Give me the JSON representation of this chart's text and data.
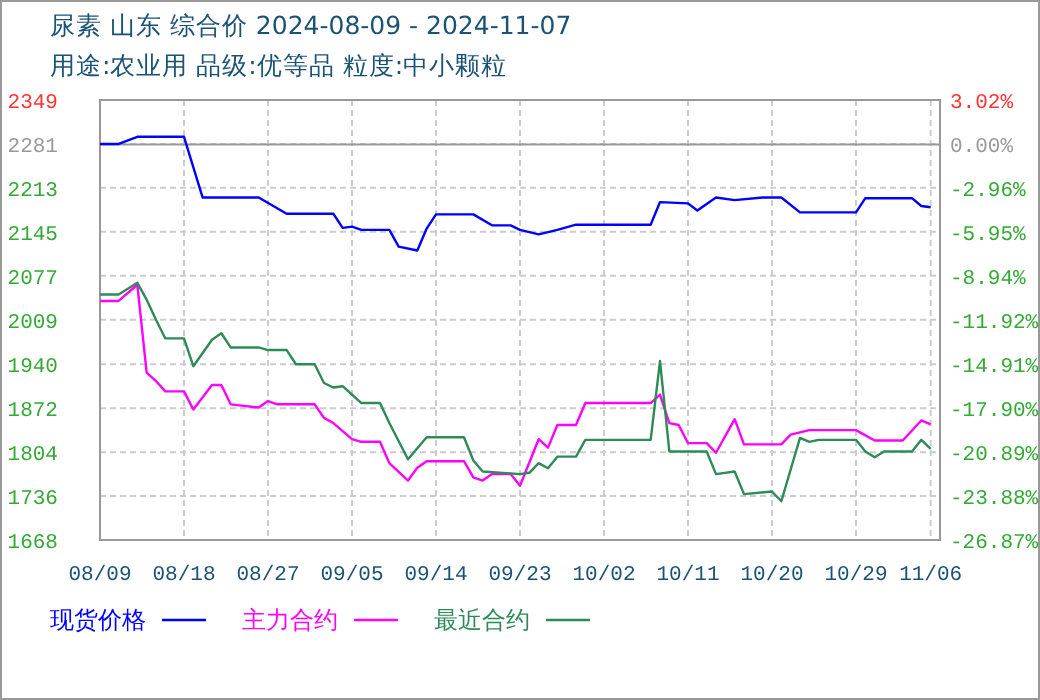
{
  "chart_data": {
    "type": "line",
    "title": "尿素 山东 综合价 2024-08-09 - 2024-11-07",
    "subtitle": "用途:农业用 品级:优等品 粒度:中小颗粒",
    "xlim": [
      "2024-08-09",
      "2024-11-07"
    ],
    "xticks": [
      {
        "value": "2024-08-09",
        "label": "08/09"
      },
      {
        "value": "2024-08-18",
        "label": "08/18"
      },
      {
        "value": "2024-08-27",
        "label": "08/27"
      },
      {
        "value": "2024-09-05",
        "label": "09/05"
      },
      {
        "value": "2024-09-14",
        "label": "09/14"
      },
      {
        "value": "2024-09-23",
        "label": "09/23"
      },
      {
        "value": "2024-10-02",
        "label": "10/02"
      },
      {
        "value": "2024-10-11",
        "label": "10/11"
      },
      {
        "value": "2024-10-20",
        "label": "10/20"
      },
      {
        "value": "2024-10-29",
        "label": "10/29"
      },
      {
        "value": "2024-11-06",
        "label": "11/06"
      }
    ],
    "ylim": [
      1668,
      2349
    ],
    "yticks": [
      1668,
      1736,
      1804,
      1872,
      1940,
      2009,
      2077,
      2145,
      2213,
      2281,
      2349
    ],
    "y2lim": [
      -26.87,
      3.02
    ],
    "y2ticks": [
      {
        "value": -26.87,
        "label": "-26.87%"
      },
      {
        "value": -23.88,
        "label": "-23.88%"
      },
      {
        "value": -20.89,
        "label": "-20.89%"
      },
      {
        "value": -17.9,
        "label": "-17.90%"
      },
      {
        "value": -14.91,
        "label": "-14.91%"
      },
      {
        "value": -11.92,
        "label": "-11.92%"
      },
      {
        "value": -8.94,
        "label": "-8.94%"
      },
      {
        "value": -5.95,
        "label": "-5.95%"
      },
      {
        "value": -2.96,
        "label": "-2.96%"
      },
      {
        "value": 0,
        "label": "0.00%"
      },
      {
        "value": 3.02,
        "label": "3.02%"
      }
    ],
    "grid": true,
    "legend": "bottom",
    "marker": "none",
    "line_style": "solid",
    "ref_lines": [
      {
        "axis": "y2",
        "value": 0,
        "color": "#999999"
      }
    ],
    "series": [
      {
        "name": "现货价格",
        "color": "#0000ff",
        "x": [
          "2024-08-09",
          "2024-08-11",
          "2024-08-13",
          "2024-08-18",
          "2024-08-20",
          "2024-08-26",
          "2024-08-29",
          "2024-09-03",
          "2024-09-04",
          "2024-09-05",
          "2024-09-06",
          "2024-09-09",
          "2024-09-10",
          "2024-09-12",
          "2024-09-13",
          "2024-09-14",
          "2024-09-18",
          "2024-09-20",
          "2024-09-22",
          "2024-09-23",
          "2024-09-25",
          "2024-09-27",
          "2024-09-29",
          "2024-10-07",
          "2024-10-08",
          "2024-10-11",
          "2024-10-12",
          "2024-10-14",
          "2024-10-16",
          "2024-10-19",
          "2024-10-21",
          "2024-10-23",
          "2024-10-29",
          "2024-10-30",
          "2024-11-04",
          "2024-11-05",
          "2024-11-06"
        ],
        "values": [
          2281,
          2281,
          2292,
          2292,
          2198,
          2198,
          2173,
          2173,
          2151,
          2153,
          2148,
          2148,
          2122,
          2116,
          2150,
          2172,
          2172,
          2155,
          2155,
          2148,
          2141,
          2148,
          2156,
          2156,
          2191,
          2189,
          2178,
          2198,
          2194,
          2198,
          2198,
          2175,
          2175,
          2197,
          2197,
          2185,
          2183
        ]
      },
      {
        "name": "主力合约",
        "color": "#ff00ff",
        "x": [
          "2024-08-09",
          "2024-08-11",
          "2024-08-13",
          "2024-08-14",
          "2024-08-15",
          "2024-08-16",
          "2024-08-18",
          "2024-08-19",
          "2024-08-21",
          "2024-08-22",
          "2024-08-23",
          "2024-08-26",
          "2024-08-27",
          "2024-08-28",
          "2024-09-01",
          "2024-09-02",
          "2024-09-03",
          "2024-09-05",
          "2024-09-06",
          "2024-09-08",
          "2024-09-09",
          "2024-09-11",
          "2024-09-12",
          "2024-09-13",
          "2024-09-17",
          "2024-09-18",
          "2024-09-19",
          "2024-09-20",
          "2024-09-22",
          "2024-09-23",
          "2024-09-25",
          "2024-09-26",
          "2024-09-27",
          "2024-09-29",
          "2024-09-30",
          "2024-10-07",
          "2024-10-08",
          "2024-10-09",
          "2024-10-10",
          "2024-10-11",
          "2024-10-13",
          "2024-10-14",
          "2024-10-16",
          "2024-10-17",
          "2024-10-21",
          "2024-10-22",
          "2024-10-24",
          "2024-10-29",
          "2024-10-31",
          "2024-11-03",
          "2024-11-05",
          "2024-11-06"
        ],
        "values": [
          2038,
          2038,
          2063,
          1927,
          1914,
          1898,
          1898,
          1870,
          1908,
          1908,
          1878,
          1873,
          1883,
          1878,
          1878,
          1857,
          1849,
          1824,
          1820,
          1820,
          1787,
          1760,
          1780,
          1790,
          1790,
          1765,
          1760,
          1770,
          1770,
          1752,
          1824,
          1811,
          1846,
          1846,
          1880,
          1880,
          1893,
          1849,
          1846,
          1818,
          1818,
          1803,
          1855,
          1816,
          1816,
          1831,
          1838,
          1838,
          1822,
          1822,
          1853,
          1847
        ]
      },
      {
        "name": "最近合约",
        "color": "#2e8b57",
        "x": [
          "2024-08-09",
          "2024-08-11",
          "2024-08-13",
          "2024-08-14",
          "2024-08-15",
          "2024-08-16",
          "2024-08-18",
          "2024-08-19",
          "2024-08-21",
          "2024-08-22",
          "2024-08-23",
          "2024-08-26",
          "2024-08-27",
          "2024-08-29",
          "2024-08-30",
          "2024-09-01",
          "2024-09-02",
          "2024-09-03",
          "2024-09-04",
          "2024-09-06",
          "2024-09-08",
          "2024-09-09",
          "2024-09-11",
          "2024-09-13",
          "2024-09-17",
          "2024-09-18",
          "2024-09-19",
          "2024-09-23",
          "2024-09-24",
          "2024-09-25",
          "2024-09-26",
          "2024-09-27",
          "2024-09-29",
          "2024-09-30",
          "2024-10-07",
          "2024-10-08",
          "2024-10-09",
          "2024-10-13",
          "2024-10-14",
          "2024-10-16",
          "2024-10-17",
          "2024-10-20",
          "2024-10-21",
          "2024-10-23",
          "2024-10-24",
          "2024-10-25",
          "2024-10-29",
          "2024-10-30",
          "2024-10-31",
          "2024-11-01",
          "2024-11-04",
          "2024-11-05",
          "2024-11-06"
        ],
        "values": [
          2048,
          2048,
          2066,
          2040,
          2009,
          1980,
          1980,
          1937,
          1978,
          1988,
          1966,
          1966,
          1962,
          1962,
          1940,
          1940,
          1911,
          1904,
          1906,
          1880,
          1880,
          1849,
          1793,
          1827,
          1827,
          1791,
          1774,
          1770,
          1772,
          1787,
          1779,
          1797,
          1797,
          1823,
          1823,
          1945,
          1805,
          1805,
          1770,
          1774,
          1739,
          1743,
          1728,
          1826,
          1820,
          1823,
          1823,
          1805,
          1796,
          1805,
          1805,
          1823,
          1809
        ]
      }
    ]
  }
}
